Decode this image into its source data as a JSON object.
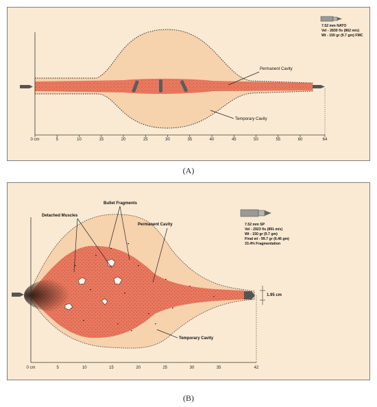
{
  "colors": {
    "panel_bg": "#fbead3",
    "temporary_cavity": "#f6d2ad",
    "permanent_cavity": "#e9795f",
    "stipple": "#b34734",
    "fragments": "#3a2a22",
    "bullet": "#5c5c5c"
  },
  "panel_a": {
    "caption": "(A)",
    "specs": [
      "7.52 mm NATO",
      "Vel - 2830 f/s (862 m/s)",
      "Wt - 150 gr (9.7 gm) FMC"
    ],
    "labels": {
      "permanent_cavity": "Permanent Cavity",
      "temporary_cavity": "Temporary Cavity"
    },
    "axis_ticks": [
      "0 cm",
      "5",
      "10",
      "15",
      "20",
      "25",
      "30",
      "35",
      "40",
      "45",
      "50",
      "55",
      "60",
      "64"
    ]
  },
  "panel_b": {
    "caption": "(B)",
    "specs": [
      "7.52 mm SP",
      "Vel - 2923 f/s (891 m/s)",
      "Wt - 150 gr (9.7 gm)",
      "Final wt - 99.7 gr (6.46 gm)",
      "33.4% Fragmentation"
    ],
    "labels": {
      "detached_muscles": "Detached Muscles",
      "bullet_fragments": "Bullet Fragments",
      "permanent_cavity": "Permanent Cavity",
      "temporary_cavity": "Temporary Cavity",
      "diameter": "1.95 cm"
    },
    "axis_ticks": [
      "0 cm",
      "5",
      "10",
      "15",
      "20",
      "25",
      "30",
      "35",
      "42"
    ]
  }
}
